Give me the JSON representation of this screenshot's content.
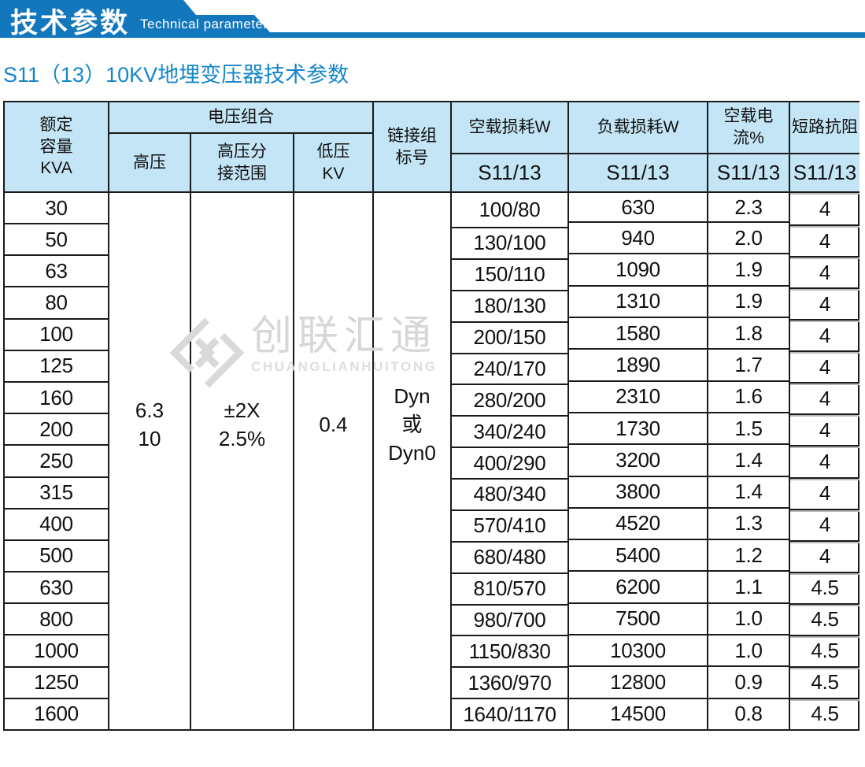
{
  "banner": {
    "title": "技术参数",
    "subtitle_en": "Technical parameter",
    "color": "#1377be"
  },
  "page_title": "S11（13）10KV地埋变压器技术参数",
  "watermark": {
    "cn": "创联汇通",
    "en": "CHUANGLIANHUITONG"
  },
  "table": {
    "headers": {
      "capacity_lines": [
        "额定",
        "容量",
        "KVA"
      ],
      "voltage_group": "电压组合",
      "hv": "高压",
      "hv_tap_lines": [
        "高压分",
        "接范围"
      ],
      "lv_lines": [
        "低压",
        "KV"
      ],
      "vector_lines": [
        "链接组",
        "标号"
      ],
      "no_load_loss": "空载损耗W",
      "load_loss": "负载损耗W",
      "no_load_current": "空载电流%",
      "impedance": "短路抗阻",
      "model_no_load_loss": "S11/13",
      "model_load_loss": "S11/13",
      "model_no_load_current": "S11/13",
      "model_impedance": "S11/13"
    },
    "merged": {
      "hv_lines": [
        "6.3",
        "10"
      ],
      "hv_tap_lines": [
        "±2X",
        "2.5%"
      ],
      "lv": "0.4",
      "vector_lines": [
        "Dyn",
        "或",
        "Dyn0"
      ]
    },
    "rows": [
      {
        "kva": "30",
        "loss": "100/80",
        "load": "630",
        "current": "2.3",
        "imp": "4"
      },
      {
        "kva": "50",
        "loss": "130/100",
        "load": "940",
        "current": "2.0",
        "imp": "4"
      },
      {
        "kva": "63",
        "loss": "150/110",
        "load": "1090",
        "current": "1.9",
        "imp": "4"
      },
      {
        "kva": "80",
        "loss": "180/130",
        "load": "1310",
        "current": "1.9",
        "imp": "4"
      },
      {
        "kva": "100",
        "loss": "200/150",
        "load": "1580",
        "current": "1.8",
        "imp": "4"
      },
      {
        "kva": "125",
        "loss": "240/170",
        "load": "1890",
        "current": "1.7",
        "imp": "4"
      },
      {
        "kva": "160",
        "loss": "280/200",
        "load": "2310",
        "current": "1.6",
        "imp": "4"
      },
      {
        "kva": "200",
        "loss": "340/240",
        "load": "1730",
        "current": "1.5",
        "imp": "4"
      },
      {
        "kva": "250",
        "loss": "400/290",
        "load": "3200",
        "current": "1.4",
        "imp": "4"
      },
      {
        "kva": "315",
        "loss": "480/340",
        "load": "3800",
        "current": "1.4",
        "imp": "4"
      },
      {
        "kva": "400",
        "loss": "570/410",
        "load": "4520",
        "current": "1.3",
        "imp": "4"
      },
      {
        "kva": "500",
        "loss": "680/480",
        "load": "5400",
        "current": "1.2",
        "imp": "4"
      },
      {
        "kva": "630",
        "loss": "810/570",
        "load": "6200",
        "current": "1.1",
        "imp": "4.5"
      },
      {
        "kva": "800",
        "loss": "980/700",
        "load": "7500",
        "current": "1.0",
        "imp": "4.5"
      },
      {
        "kva": "1000",
        "loss": "1150/830",
        "load": "10300",
        "current": "1.0",
        "imp": "4.5"
      },
      {
        "kva": "1250",
        "loss": "1360/970",
        "load": "12800",
        "current": "0.9",
        "imp": "4.5"
      },
      {
        "kva": "1600",
        "loss": "1640/1170",
        "load": "14500",
        "current": "0.8",
        "imp": "4.5"
      }
    ]
  }
}
